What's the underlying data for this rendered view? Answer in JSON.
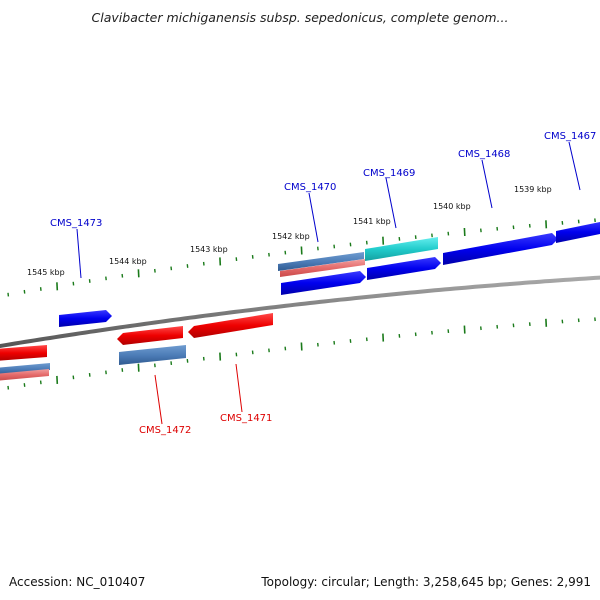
{
  "title": "Clavibacter michiganensis subsp. sepedonicus, complete genom...",
  "footer": {
    "accession": "Accession: NC_010407",
    "topology": "Topology: circular; Length: 3,258,645 bp; Genes: 2,991"
  },
  "colors": {
    "backbone": "#7a7a7a",
    "tick": "#1a7a1a",
    "forward_gene": "#0000ee",
    "reverse_gene": "#ee0000",
    "cyan_gene": "#22cccc",
    "pale_gene": "#4a7ab5",
    "forward_label": "#0000cc",
    "reverse_label": "#dd0000"
  },
  "kbp_labels": [
    "1545 kbp",
    "1544 kbp",
    "1543 kbp",
    "1542 kbp",
    "1541 kbp",
    "1540 kbp",
    "1539 kbp"
  ],
  "gene_labels": [
    {
      "text": "CMS_1473",
      "strand": "forward"
    },
    {
      "text": "CMS_1470",
      "strand": "forward"
    },
    {
      "text": "CMS_1469",
      "strand": "forward"
    },
    {
      "text": "CMS_1468",
      "strand": "forward"
    },
    {
      "text": "CMS_1467",
      "strand": "forward"
    },
    {
      "text": "CMS_1472",
      "strand": "reverse"
    },
    {
      "text": "CMS_1471",
      "strand": "reverse"
    }
  ]
}
